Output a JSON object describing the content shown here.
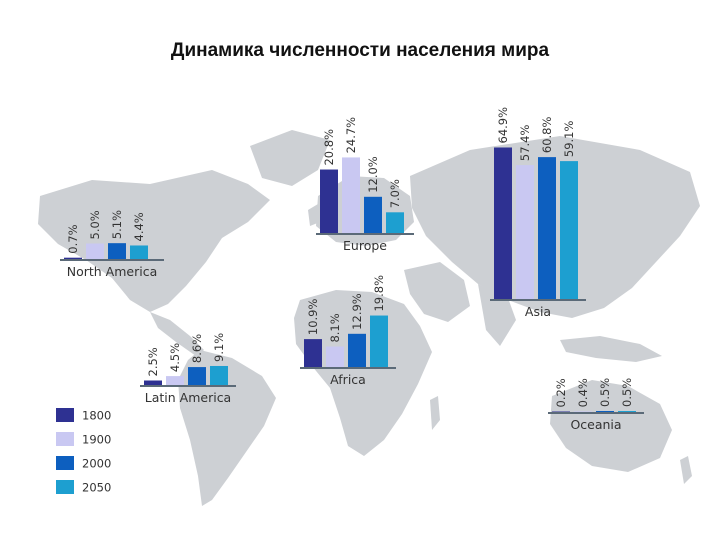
{
  "title": "Динамика численности населения мира",
  "colors": {
    "map": "#cdd0d4",
    "axis": "#5b6a78",
    "label": "#333333"
  },
  "chart_data": {
    "type": "bar",
    "title": "Динамика численности населения мира",
    "unit": "%",
    "series_names": [
      "1800",
      "1900",
      "2000",
      "2050"
    ],
    "series_colors": [
      "#2e3192",
      "#c9c8f2",
      "#0d5fbf",
      "#1d9fd0"
    ],
    "legend_position": "bottom-left",
    "ylim": [
      0,
      70
    ],
    "regions": [
      {
        "name": "North America",
        "values": [
          0.7,
          5.0,
          5.1,
          4.4
        ],
        "labels": [
          "0.7%",
          "5.0%",
          "5.1%",
          "4.4%"
        ]
      },
      {
        "name": "Europe",
        "values": [
          20.8,
          24.7,
          12.0,
          7.0
        ],
        "labels": [
          "20.8%",
          "24.7%",
          "12.0%",
          "7.0%"
        ]
      },
      {
        "name": "Asia",
        "values": [
          64.9,
          57.4,
          60.8,
          59.1
        ],
        "labels": [
          "64.9%",
          "57.4%",
          "60.8%",
          "59.1%"
        ]
      },
      {
        "name": "Latin America",
        "values": [
          2.5,
          4.5,
          8.6,
          9.1
        ],
        "labels": [
          "2.5%",
          "4.5%",
          "8.6%",
          "9.1%"
        ]
      },
      {
        "name": "Africa",
        "values": [
          10.9,
          8.1,
          12.9,
          19.8
        ],
        "labels": [
          "10.9%",
          "8.1%",
          "12.9%",
          "19.8%"
        ]
      },
      {
        "name": "Oceania",
        "values": [
          0.2,
          0.4,
          0.5,
          0.5
        ],
        "labels": [
          "0.2%",
          "0.4%",
          "0.5%",
          "0.5%"
        ]
      }
    ]
  }
}
